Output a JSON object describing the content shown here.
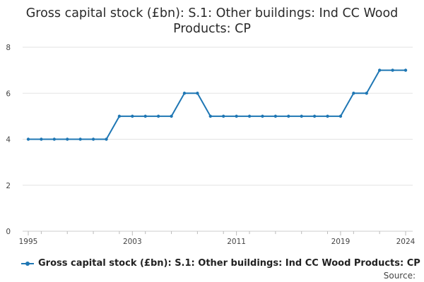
{
  "chart_data": {
    "type": "line",
    "title": "Gross capital stock (£bn): S.1: Other buildings: Ind CC Wood Products: CP",
    "title_lines": [
      "Gross capital stock (£bn): S.1: Other buildings: Ind CC Wood",
      "Products: CP"
    ],
    "xlabel": "",
    "ylabel": "",
    "x": [
      1995,
      1996,
      1997,
      1998,
      1999,
      2000,
      2001,
      2002,
      2003,
      2004,
      2005,
      2006,
      2007,
      2008,
      2009,
      2010,
      2011,
      2012,
      2013,
      2014,
      2015,
      2016,
      2017,
      2018,
      2019,
      2020,
      2021,
      2022,
      2023,
      2024
    ],
    "series": [
      {
        "name": "Gross capital stock (£bn): S.1: Other buildings: Ind CC Wood Products: CP",
        "values": [
          4,
          4,
          4,
          4,
          4,
          4,
          4,
          5,
          5,
          5,
          5,
          5,
          6,
          6,
          5,
          5,
          5,
          5,
          5,
          5,
          5,
          5,
          5,
          5,
          5,
          6,
          6,
          7,
          7,
          7
        ]
      }
    ],
    "xlim": [
      1995,
      2024
    ],
    "ylim": [
      0,
      8
    ],
    "x_ticks": [
      1995,
      2003,
      2011,
      2019,
      2024
    ],
    "y_ticks": [
      0,
      2,
      4,
      6,
      8
    ],
    "grid": "horizontal",
    "legend_position": "bottom-left",
    "color": "#1f77b4"
  },
  "source_label": "Source:"
}
